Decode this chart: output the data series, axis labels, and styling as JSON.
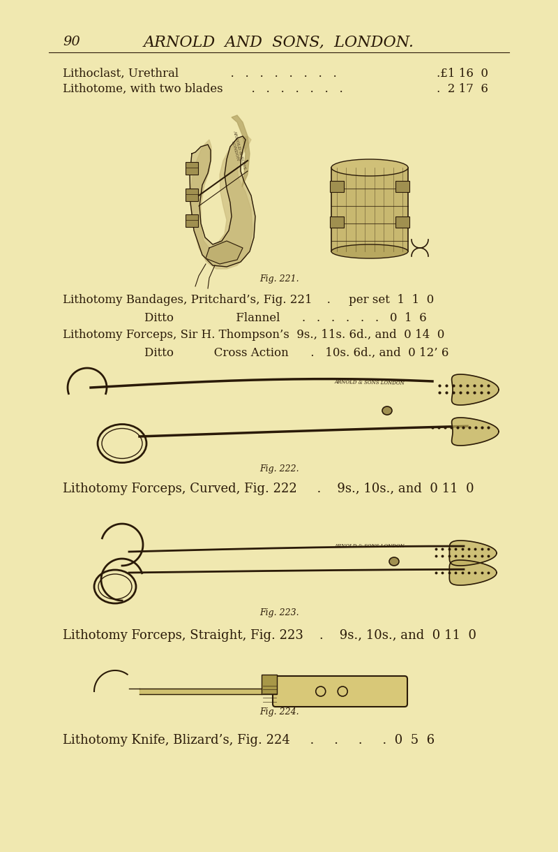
{
  "bg_color": "#f0e8b0",
  "text_color": "#2a1a08",
  "title": "ARNOLD  AND  SONS,  LONDON.",
  "page_num": "90",
  "fig221_caption": "Fig. 221.",
  "fig222_caption": "Fig. 222.",
  "fig223_caption": "Fig. 223.",
  "fig224_caption": "Fig. 224.",
  "line1a": "Lithoclast, Urethral",
  "line1a_dots": "  .   .   .   .   .   .   .   .",
  "line1a_price": ".£1 16  0",
  "line1b": "Lithotome, with two blades",
  "line1b_dots": "  .   .   .   .   .   .   .",
  "line1b_price": ".  2 17  6",
  "line2a": "Lithotomy Bandages, Pritchard’s, Fig. 221    .     per set  1  1  0",
  "line2b": "        Ditto                 Flannel      .   .   .   .   .   .   0  1  6",
  "line2c": "Lithotomy Forceps, Sir H. Thompson’s  9s., 11s. 6d., and  0 14  0",
  "line2d": "        Ditto           Cross Action      .   10s. 6d., and  0 12’ 6",
  "line3": "Lithotomy Forceps, Curved, Fig. 222     .    9s., 10s., and  0 11  0",
  "line4": "Lithotomy Forceps, Straight, Fig. 223    .    9s., 10s., and  0 11  0",
  "line5": "Lithotomy Knife, Blizard’s, Fig. 224     .     .     .     .  0  5  6"
}
